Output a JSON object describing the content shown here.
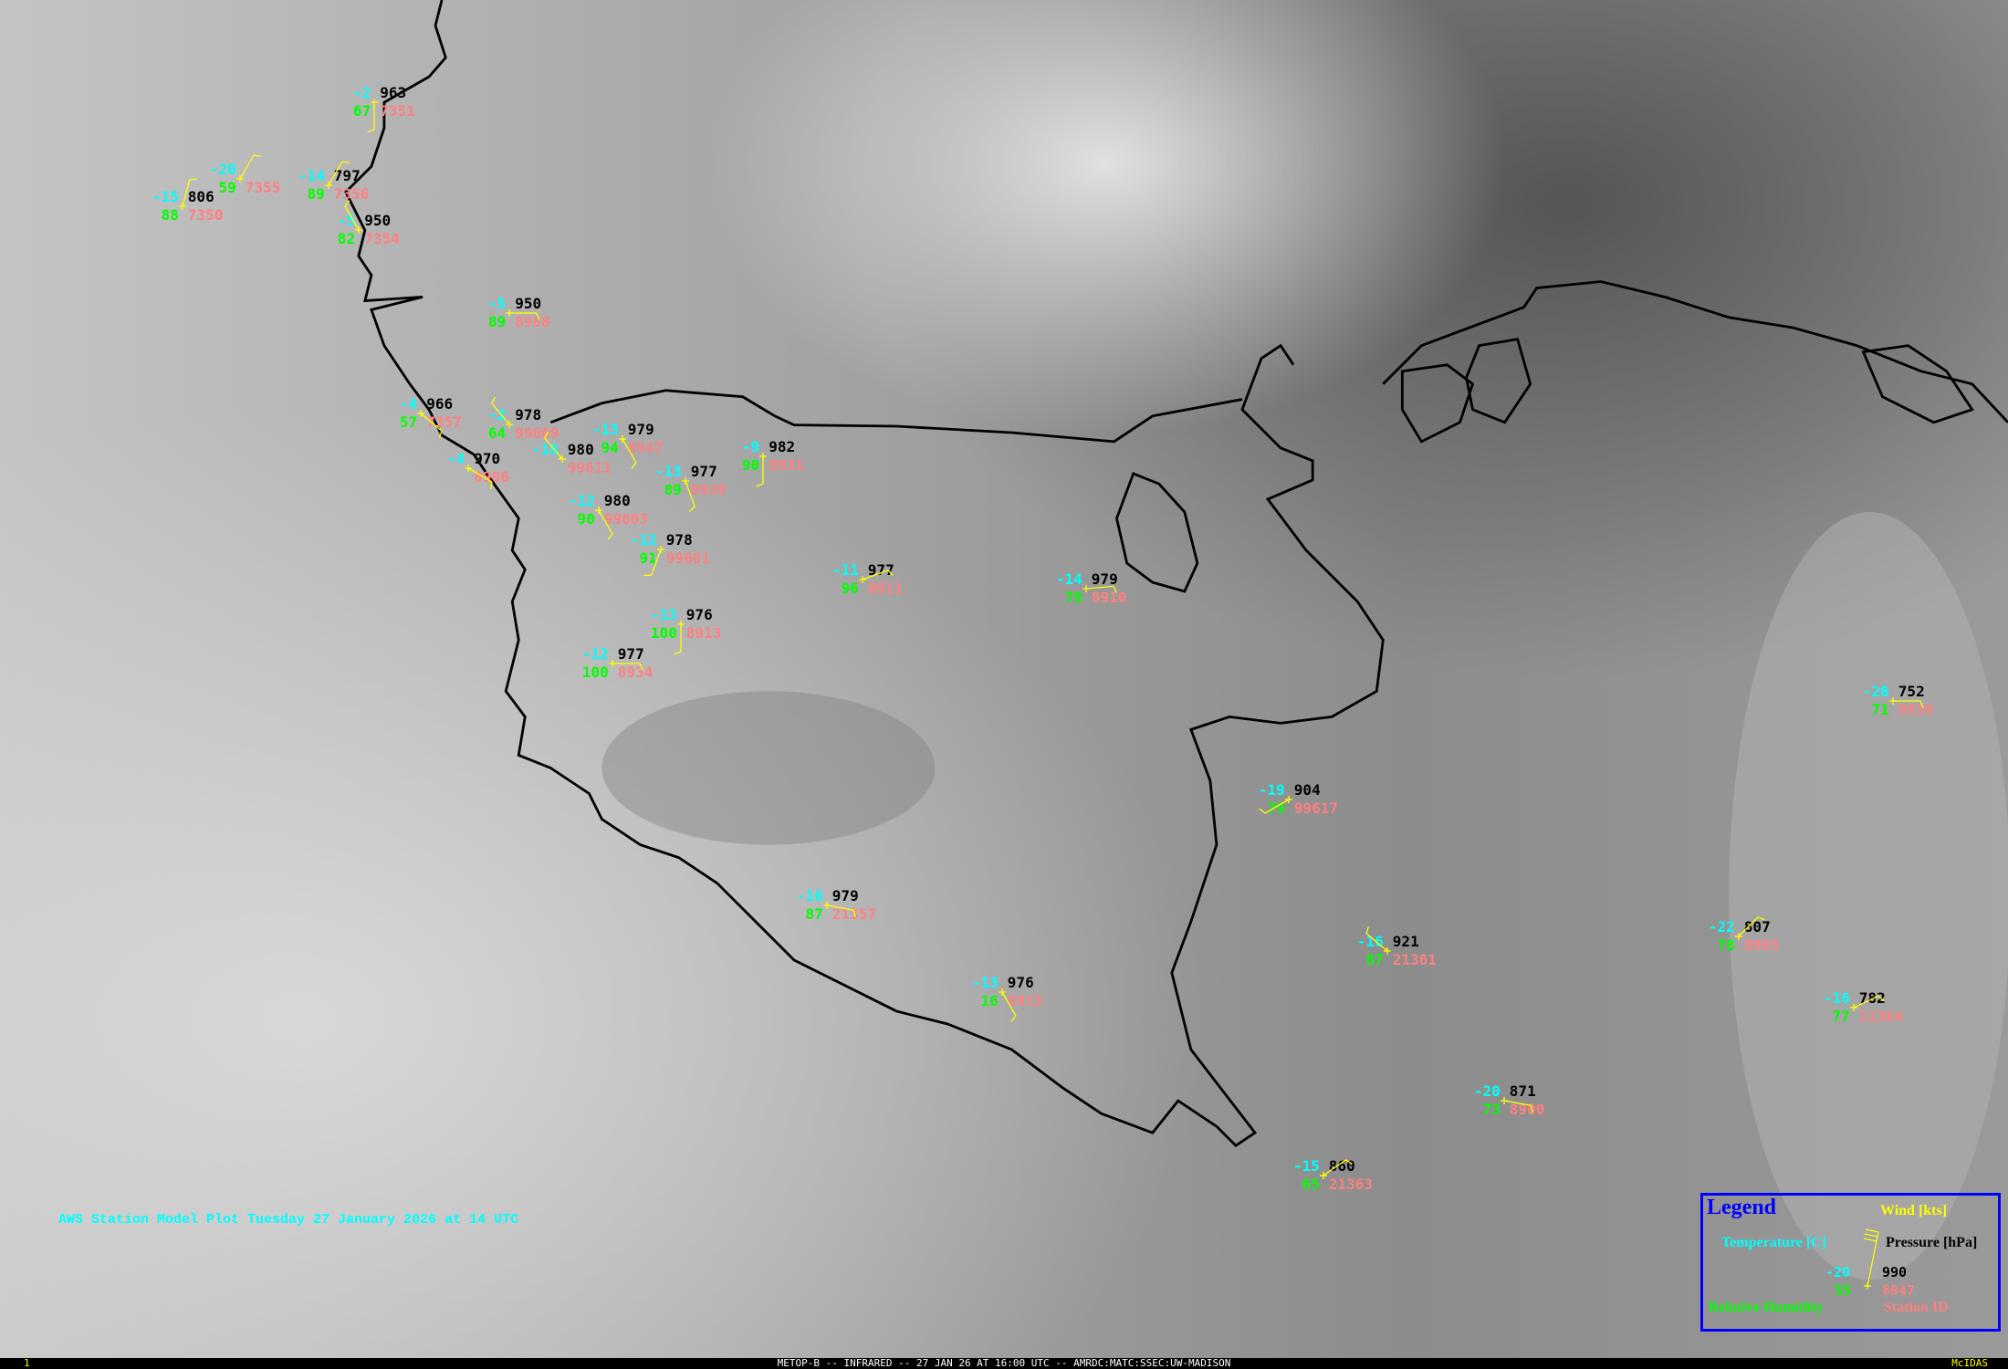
{
  "caption": "AWS Station Model Plot Tuesday 27 January 2026 at 14 UTC",
  "status_bar": {
    "frame": "1",
    "title": "METOP-B -- INFRARED -- 27 JAN 26 AT 16:00 UTC -- AMRDC:MATC:SSEC:UW-MADISON",
    "software": "McIDAS"
  },
  "legend": {
    "title": "Legend",
    "wind_label": "Wind [kts]",
    "temperature_label": "Temperature [C]",
    "pressure_label": "Pressure [hPa]",
    "humidity_label": "Relative Humidity",
    "station_id_label": "Station ID",
    "example": {
      "temp": "-20",
      "pressure": "990",
      "rh": "55",
      "id": "8947"
    }
  },
  "colors": {
    "temperature": "#00ffff",
    "pressure": "#000000",
    "humidity": "#00ff00",
    "station_id": "#ff8080",
    "wind": "#ffff00",
    "legend_border": "#0000ff",
    "coastline": "#000000"
  },
  "stations": [
    {
      "temp": "-2",
      "pressure": "963",
      "rh": "67",
      "id": "7351"
    },
    {
      "temp": "-15",
      "pressure": "806",
      "rh": "88",
      "id": "7350"
    },
    {
      "temp": "-20",
      "pressure": "",
      "rh": "59",
      "id": "7355"
    },
    {
      "temp": "-14",
      "pressure": "797",
      "rh": "89",
      "id": "7356"
    },
    {
      "temp": "-5",
      "pressure": "950",
      "rh": "82",
      "id": "7354"
    },
    {
      "temp": "-5",
      "pressure": "950",
      "rh": "89",
      "id": "8988"
    },
    {
      "temp": "-4",
      "pressure": "966",
      "rh": "57",
      "id": "7357"
    },
    {
      "temp": "-2",
      "pressure": "978",
      "rh": "64",
      "id": "99609"
    },
    {
      "temp": "-4",
      "pressure": "970",
      "rh": "",
      "id": "8906"
    },
    {
      "temp": "-10",
      "pressure": "980",
      "rh": "",
      "id": "99611"
    },
    {
      "temp": "-13",
      "pressure": "979",
      "rh": "94",
      "id": "8947"
    },
    {
      "temp": "-13",
      "pressure": "977",
      "rh": "89",
      "id": "8939"
    },
    {
      "temp": "-9",
      "pressure": "982",
      "rh": "90",
      "id": "8931"
    },
    {
      "temp": "-12",
      "pressure": "980",
      "rh": "90",
      "id": "99603"
    },
    {
      "temp": "-12",
      "pressure": "978",
      "rh": "91",
      "id": "99601"
    },
    {
      "temp": "-11",
      "pressure": "977",
      "rh": "96",
      "id": "8911"
    },
    {
      "temp": "-13",
      "pressure": "976",
      "rh": "100",
      "id": "8913"
    },
    {
      "temp": "-12",
      "pressure": "977",
      "rh": "100",
      "id": "8934"
    },
    {
      "temp": "-14",
      "pressure": "979",
      "rh": "79",
      "id": "8910"
    },
    {
      "temp": "-19",
      "pressure": "904",
      "rh": "79",
      "id": "99617"
    },
    {
      "temp": "-16",
      "pressure": "979",
      "rh": "87",
      "id": "21357"
    },
    {
      "temp": "-13",
      "pressure": "976",
      "rh": "16",
      "id": "8915"
    },
    {
      "temp": "-16",
      "pressure": "921",
      "rh": "87",
      "id": "21361"
    },
    {
      "temp": "-20",
      "pressure": "871",
      "rh": "73",
      "id": "8900"
    },
    {
      "temp": "-15",
      "pressure": "860",
      "rh": "65",
      "id": "21363"
    },
    {
      "temp": "-26",
      "pressure": "752",
      "rh": "71",
      "id": "8936"
    },
    {
      "temp": "-22",
      "pressure": "807",
      "rh": "78",
      "id": "8903"
    },
    {
      "temp": "-16",
      "pressure": "782",
      "rh": "77",
      "id": "21364"
    }
  ]
}
